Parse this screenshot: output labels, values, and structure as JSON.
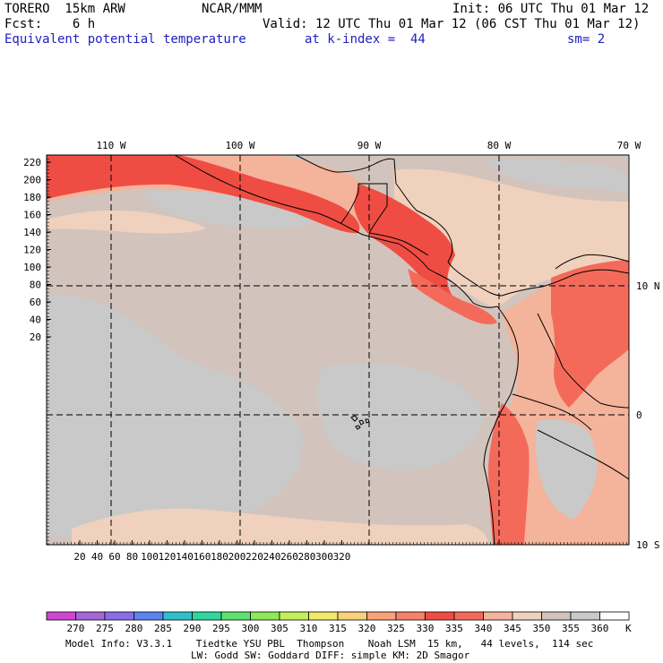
{
  "header": {
    "model": "TORERO  15km ARW",
    "org": "NCAR/MMM",
    "init": "Init: 06 UTC Thu 01 Mar 12",
    "fcst": "Fcst:    6 h",
    "valid": "Valid: 12 UTC Thu 01 Mar 12 (06 CST Thu 01 Mar 12)",
    "field": "Equivalent potential temperature",
    "level": "at k-index =  44",
    "smooth": "sm= 2"
  },
  "map": {
    "top_lon_labels": [
      "110 W",
      "100 W",
      "90 W",
      "80 W",
      "70 W"
    ],
    "right_lat_labels": [
      "10 N",
      "0",
      "10 S"
    ],
    "left_ticks": [
      "220",
      "200",
      "180",
      "160",
      "140",
      "120",
      "100",
      "80",
      "60",
      "40",
      "20"
    ],
    "bottom_ticks": [
      "20",
      "40",
      "60",
      "80",
      "100",
      "120",
      "140",
      "160",
      "180",
      "200",
      "220",
      "240",
      "260",
      "280",
      "300",
      "320"
    ],
    "colors": {
      "c320": "#f7b58a",
      "c325": "#f2876a",
      "c330": "#ef4d43",
      "c335": "#f46a5a",
      "c340": "#f4b39b",
      "c345": "#efd1bd",
      "c350": "#d2c4bc",
      "c355": "#c9c9c9",
      "coast": "#000000"
    }
  },
  "colorbar": {
    "labels": [
      "270",
      "275",
      "280",
      "285",
      "290",
      "295",
      "300",
      "305",
      "310",
      "315",
      "320",
      "325",
      "330",
      "335",
      "340",
      "345",
      "350",
      "355",
      "360"
    ],
    "unit": "K",
    "colors": [
      "#d046d0",
      "#a566d6",
      "#8a6ee8",
      "#5b84f0",
      "#2ec0c8",
      "#2fd6a0",
      "#5ee070",
      "#8ee85a",
      "#c4ee5a",
      "#f2e86a",
      "#f7d27a",
      "#f7a278",
      "#f5816a",
      "#ef4d43",
      "#f46a5a",
      "#f4b39b",
      "#efd1bd",
      "#d2c4bc",
      "#c9c9c9",
      "#ffffff"
    ]
  },
  "footer": {
    "line1": "Model Info: V3.3.1    Tiedtke YSU PBL  Thompson    Noah LSM  15 km,   44 levels,  114 sec",
    "line2": "LW: Godd SW: Goddard DIFF: simple KM: 2D Smagor"
  }
}
